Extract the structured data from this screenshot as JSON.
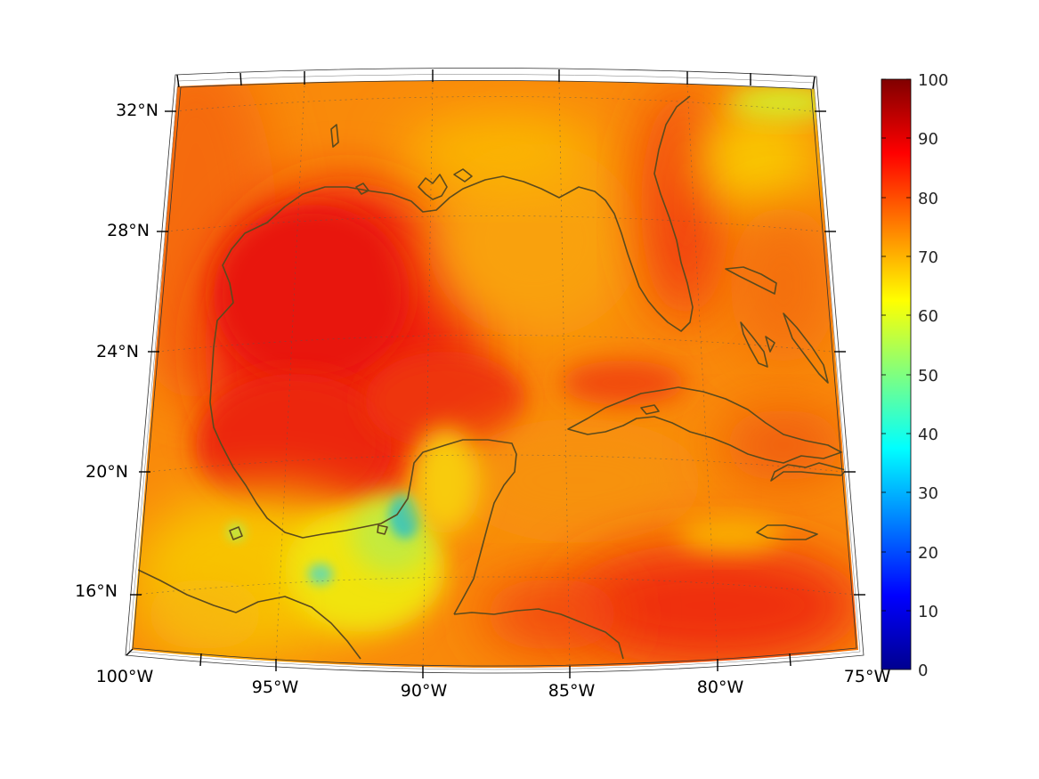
{
  "map": {
    "projection": "conic",
    "extent": {
      "lon_min": -100,
      "lon_max": -75,
      "lat_min": 14,
      "lat_max": 33
    },
    "grid_lines": true,
    "lon_ticks": [
      {
        "value": -100,
        "label": "100°W"
      },
      {
        "value": -95,
        "label": "95°W"
      },
      {
        "value": -90,
        "label": "90°W"
      },
      {
        "value": -85,
        "label": "85°W"
      },
      {
        "value": -80,
        "label": "80°W"
      },
      {
        "value": -75,
        "label": "75°W"
      }
    ],
    "lat_ticks": [
      {
        "value": 16,
        "label": "16°N"
      },
      {
        "value": 20,
        "label": "20°N"
      },
      {
        "value": 24,
        "label": "24°N"
      },
      {
        "value": 28,
        "label": "28°N"
      },
      {
        "value": 32,
        "label": "32°N"
      }
    ],
    "field_colors": {
      "high": "#f01d0d",
      "mid": "#f98d07",
      "low": "#f2d407",
      "min": "#1fb3d6"
    },
    "coastline_color": "#5b4a1d"
  },
  "colorbar": {
    "min": 0,
    "max": 100,
    "colormap": "jet",
    "ticks": [
      {
        "value": 0,
        "label": "0"
      },
      {
        "value": 10,
        "label": "10"
      },
      {
        "value": 20,
        "label": "20"
      },
      {
        "value": 30,
        "label": "30"
      },
      {
        "value": 40,
        "label": "40"
      },
      {
        "value": 50,
        "label": "50"
      },
      {
        "value": 60,
        "label": "60"
      },
      {
        "value": 70,
        "label": "70"
      },
      {
        "value": 80,
        "label": "80"
      },
      {
        "value": 90,
        "label": "90"
      },
      {
        "value": 100,
        "label": "100"
      }
    ]
  }
}
